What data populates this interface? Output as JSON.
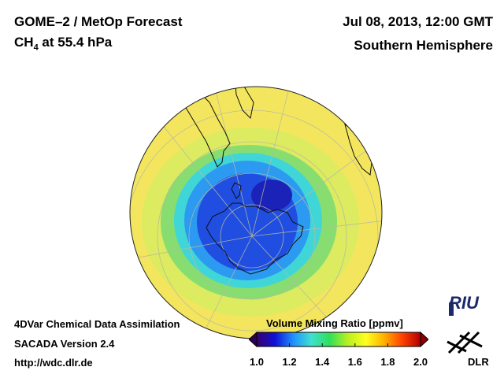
{
  "header": {
    "title_line1": "GOME–2 / MetOp Forecast",
    "title_line2_main": "CH",
    "title_line2_sub": "4",
    "title_line2_rest": " at 55.4 hPa",
    "date": "Jul 08, 2013, 12:00 GMT",
    "hemisphere": "Southern Hemisphere"
  },
  "footer": {
    "line1": "4DVar Chemical Data Assimilation",
    "line2": "SACADA Version 2.4",
    "line3": "http://wdc.dlr.de"
  },
  "colorbar": {
    "title": "Volume Mixing Ratio [ppmv]",
    "ticks": [
      "1.0",
      "1.2",
      "1.4",
      "1.6",
      "1.8",
      "2.0"
    ],
    "min": 1.0,
    "max": 2.0,
    "colors": [
      "#3a006a",
      "#1010d8",
      "#1e90ff",
      "#40e0d0",
      "#2ee05a",
      "#b8f020",
      "#ffff20",
      "#ffb000",
      "#ff4000",
      "#b00000"
    ]
  },
  "logos": {
    "riu": "RIU",
    "dlr": "DLR"
  }
}
